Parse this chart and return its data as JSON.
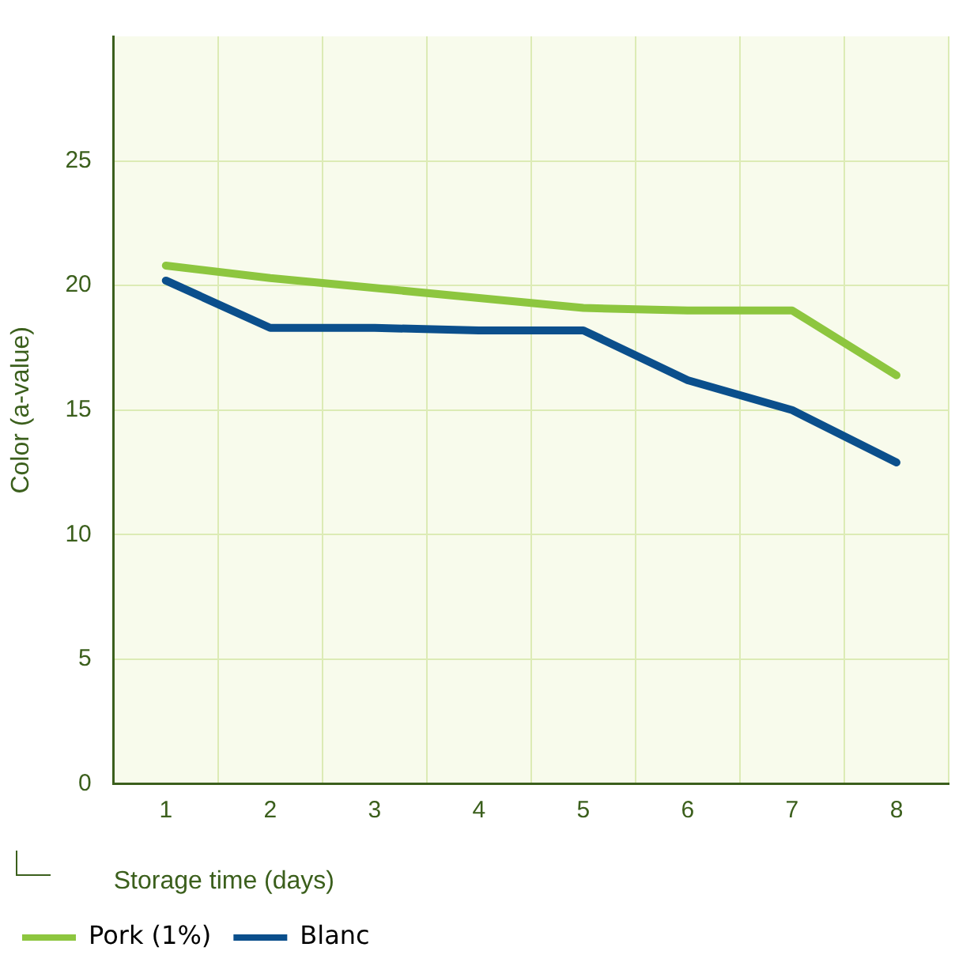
{
  "chart_data": {
    "type": "line",
    "xlabel": "Storage time (days)",
    "ylabel": "Color (a-value)",
    "categories": [
      "1",
      "2",
      "3",
      "4",
      "5",
      "6",
      "7",
      "8"
    ],
    "series": [
      {
        "name": "Pork (1%)",
        "color": "#8dc63f",
        "values": [
          20.8,
          20.3,
          19.9,
          19.5,
          19.1,
          19.0,
          19.0,
          16.4
        ]
      },
      {
        "name": "Blanc",
        "color": "#0b4f8c",
        "values": [
          20.2,
          18.3,
          18.3,
          18.2,
          18.2,
          16.2,
          15.0,
          12.9
        ]
      }
    ],
    "ylim": [
      0,
      30
    ],
    "yticks": [
      0,
      5,
      10,
      15,
      20,
      25
    ],
    "grid": true,
    "legend": "bottom left",
    "marker": "none",
    "line_style": "solid"
  }
}
